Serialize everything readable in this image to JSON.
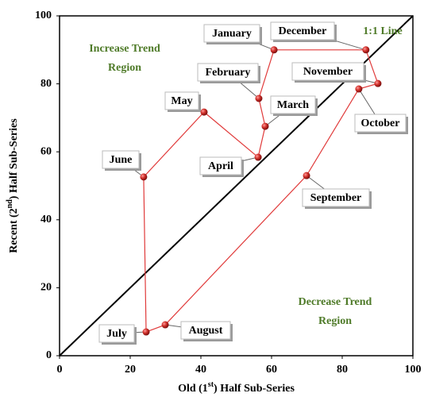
{
  "chart_data": {
    "type": "scatter",
    "x_label": {
      "before": "Old (1",
      "sup": "st",
      "after": ") Half Sub-Series"
    },
    "y_label": {
      "before": "Recent (2",
      "sup": "nd",
      "after": ") Half Sub-Series"
    },
    "annotations": [
      [
        "Increase Trend",
        "Region"
      ],
      [
        "Decrease Trend",
        "Region"
      ],
      [
        "1:1 Line"
      ]
    ],
    "categories": [
      "January",
      "February",
      "March",
      "April",
      "May",
      "June",
      "July",
      "August",
      "September",
      "October",
      "November",
      "December"
    ],
    "series": [
      {
        "color": "#e03a3a",
        "x": [
          60.7,
          56.4,
          58.2,
          56.2,
          40.9,
          23.8,
          24.5,
          29.9,
          69.9,
          84.7,
          90.1,
          86.7
        ],
        "values": [
          90.0,
          75.7,
          67.5,
          58.4,
          71.7,
          52.6,
          7.0,
          9.1,
          53.0,
          78.5,
          80.1,
          90.0
        ]
      }
    ],
    "xlim": [
      0,
      100
    ],
    "ylim": [
      0,
      100
    ],
    "xticks": [
      0,
      20,
      40,
      60,
      80,
      100
    ],
    "yticks": [
      0,
      20,
      40,
      60,
      80,
      100
    ],
    "annotation_color": "#4e7a28",
    "diagonal_color": "#000000"
  }
}
